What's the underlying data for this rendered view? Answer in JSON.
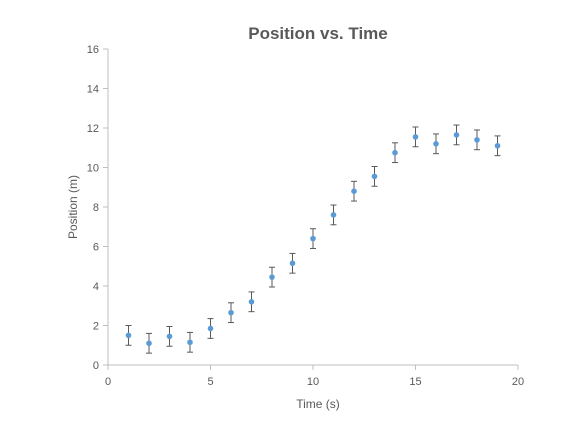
{
  "chart_data": {
    "type": "scatter",
    "title": "Position vs. Time",
    "xlabel": "Time (s)",
    "ylabel": "Position (m)",
    "xlim": [
      0,
      20
    ],
    "ylim": [
      0,
      16
    ],
    "x_ticks": [
      0,
      5,
      10,
      15,
      20
    ],
    "y_ticks": [
      0,
      2,
      4,
      6,
      8,
      10,
      12,
      14,
      16
    ],
    "grid": false,
    "legend": "none",
    "point_color": "#5b9bd5",
    "error_bar_color": "#595959",
    "error": 0.5,
    "x": [
      1,
      2,
      3,
      4,
      5,
      6,
      7,
      8,
      9,
      10,
      11,
      12,
      13,
      14,
      15,
      16,
      17,
      18,
      19
    ],
    "y": [
      1.5,
      1.1,
      1.45,
      1.15,
      1.85,
      2.65,
      3.2,
      4.45,
      5.15,
      6.4,
      7.6,
      8.8,
      9.55,
      10.75,
      11.55,
      11.2,
      11.65,
      11.4,
      11.1
    ]
  }
}
